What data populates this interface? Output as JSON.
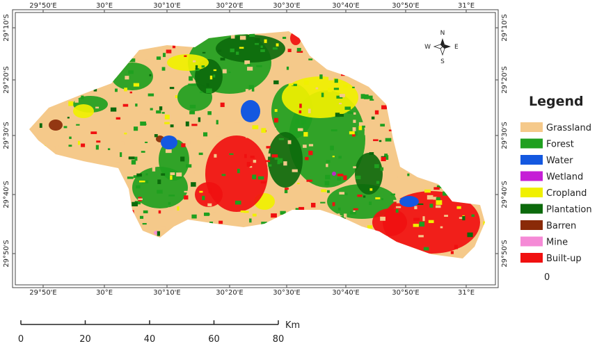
{
  "map": {
    "top_labels": [
      "29°50'E",
      "30°E",
      "30°10'E",
      "30°20'E",
      "30°30'E",
      "30°40'E",
      "30°50'E",
      "31°E"
    ],
    "bottom_labels": [
      "29°50'E",
      "30°E",
      "30°10'E",
      "30°20'E",
      "30°30'E",
      "30°40'E",
      "30°50'E",
      "31°E"
    ],
    "left_labels": [
      "29°10'S",
      "29°20'S",
      "29°30'S",
      "29°40'S",
      "29°50'S"
    ],
    "right_labels": [
      "29°10'S",
      "29°20'S",
      "29°30'S",
      "29°40'S",
      "29°50'S"
    ]
  },
  "compass": {
    "north": "N",
    "south": "S",
    "west": "W",
    "east": "E"
  },
  "legend": {
    "title": "Legend",
    "items": [
      {
        "label": "Grassland",
        "color": "#f5c98a"
      },
      {
        "label": "Forest",
        "color": "#1fa01f"
      },
      {
        "label": "Water",
        "color": "#1458e0"
      },
      {
        "label": "Wetland",
        "color": "#c51fd6"
      },
      {
        "label": "Cropland",
        "color": "#f0f000"
      },
      {
        "label": "Plantation",
        "color": "#0c6a0c"
      },
      {
        "label": "Barren",
        "color": "#8a2a08"
      },
      {
        "label": "Mine",
        "color": "#f58ad6"
      },
      {
        "label": "Built-up",
        "color": "#f01010"
      }
    ],
    "extra": "0"
  },
  "scale_bar": {
    "unit": "Km",
    "labels": [
      0,
      20,
      40,
      60,
      80
    ]
  }
}
